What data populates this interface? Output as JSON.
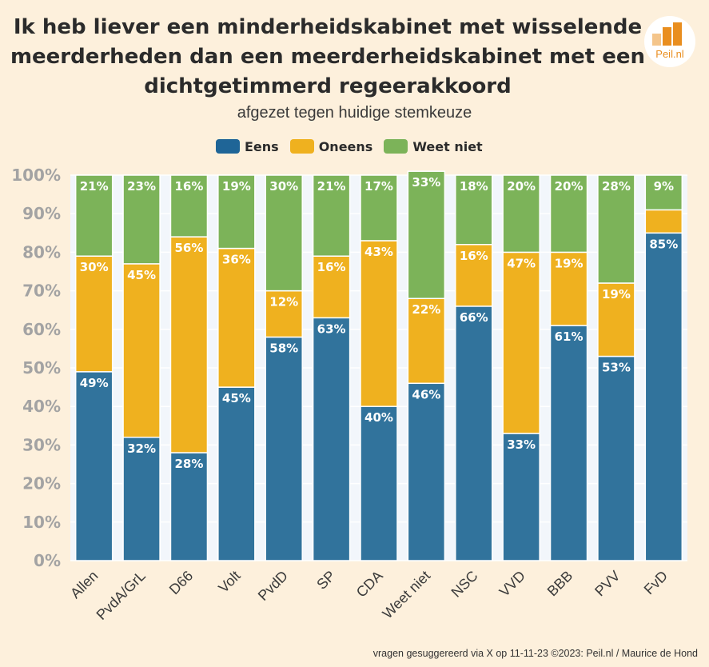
{
  "chart_data": {
    "type": "bar",
    "stacked": true,
    "title": "Ik heb liever een minderheidskabinet met wisselende meerderheden dan een meerderheidskabinet met een dichtgetimmerd regeerakkoord",
    "subtitle": "afgezet tegen huidige stemkeuze",
    "xlabel": "",
    "ylabel": "",
    "ylim": [
      0,
      100
    ],
    "yticks": [
      "0%",
      "10%",
      "20%",
      "30%",
      "40%",
      "50%",
      "60%",
      "70%",
      "80%",
      "90%",
      "100%"
    ],
    "grid": true,
    "legend_position": "top-center",
    "categories": [
      "Allen",
      "PvdA/GrL",
      "D66",
      "Volt",
      "PvdD",
      "SP",
      "CDA",
      "Weet niet",
      "NSC",
      "VVD",
      "BBB",
      "PVV",
      "FvD"
    ],
    "series": [
      {
        "name": "Eens",
        "color": "#31739c",
        "values": [
          49,
          32,
          28,
          45,
          58,
          63,
          40,
          46,
          66,
          33,
          61,
          53,
          85
        ]
      },
      {
        "name": "Oneens",
        "color": "#efb11f",
        "values": [
          30,
          45,
          56,
          36,
          12,
          16,
          43,
          22,
          16,
          47,
          19,
          19,
          6
        ]
      },
      {
        "name": "Weet niet",
        "color": "#7cb359",
        "values": [
          21,
          23,
          16,
          19,
          30,
          21,
          17,
          33,
          18,
          20,
          20,
          28,
          9
        ]
      }
    ],
    "labels_shown": [
      [
        "49%",
        "32%",
        "28%",
        "45%",
        "58%",
        "63%",
        "40%",
        "46%",
        "66%",
        "33%",
        "61%",
        "53%",
        "85%"
      ],
      [
        "30%",
        "45%",
        "56%",
        "36%",
        "12%",
        "16%",
        "43%",
        "22%",
        "16%",
        "47%",
        "19%",
        "19%",
        ""
      ],
      [
        "21%",
        "23%",
        "16%",
        "19%",
        "30%",
        "21%",
        "17%",
        "33%",
        "18%",
        "20%",
        "20%",
        "28%",
        "9%"
      ]
    ]
  },
  "legend": {
    "eens": "Eens",
    "oneens": "Oneens",
    "weet_niet": "Weet niet"
  },
  "legend_colors": {
    "eens": "#1f6597",
    "oneens": "#efb11f",
    "weet_niet": "#7cb359"
  },
  "logo": {
    "text": "Peil.nl",
    "color": "#e98e1f"
  },
  "footer": "vragen gesuggereerd via X op 11-11-23 ©2023: Peil.nl / Maurice de Hond"
}
